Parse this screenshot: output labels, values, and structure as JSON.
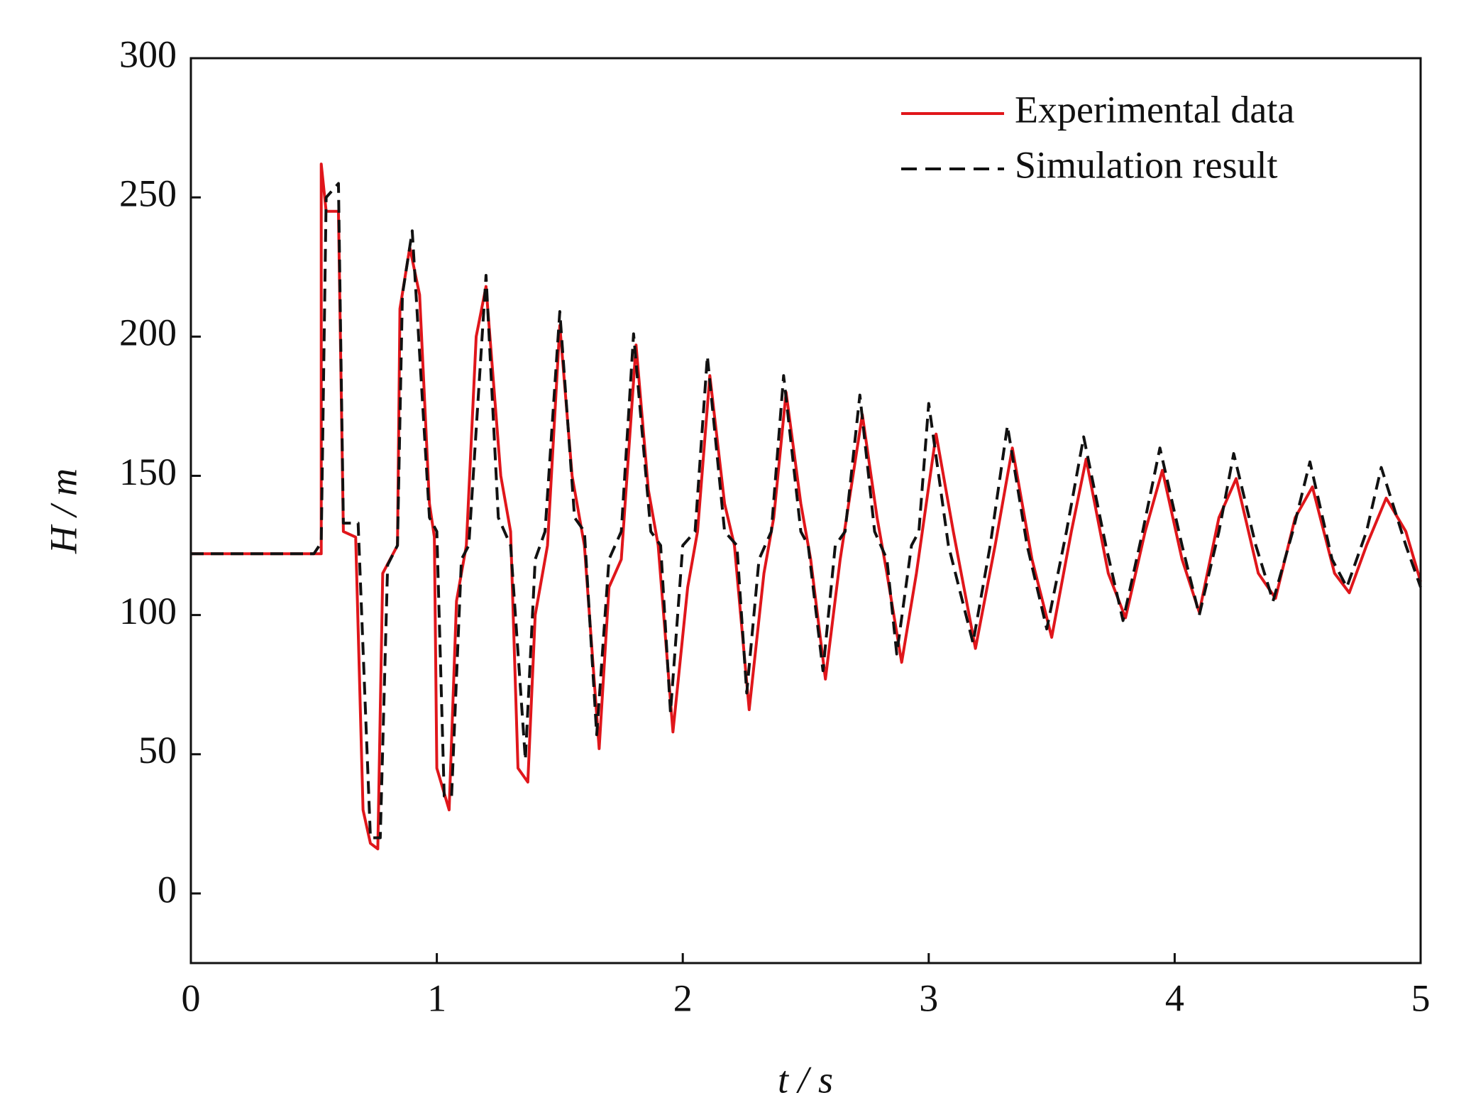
{
  "chart_data": {
    "type": "line",
    "xlabel": "t  / s",
    "ylabel": "H / m",
    "xlim": [
      0,
      5
    ],
    "ylim": [
      -25,
      300
    ],
    "xticks": [
      0,
      1,
      2,
      3,
      4,
      5
    ],
    "yticks": [
      0,
      50,
      100,
      150,
      200,
      250,
      300
    ],
    "legend": "upper right",
    "series": [
      {
        "name": "Experimental data",
        "color": "#e0161b",
        "style": "solid",
        "x": [
          0,
          0.53,
          0.53,
          0.55,
          0.6,
          0.62,
          0.67,
          0.7,
          0.73,
          0.76,
          0.78,
          0.84,
          0.85,
          0.89,
          0.93,
          0.97,
          0.99,
          1.0,
          1.05,
          1.08,
          1.12,
          1.16,
          1.2,
          1.26,
          1.3,
          1.33,
          1.37,
          1.4,
          1.45,
          1.5,
          1.55,
          1.6,
          1.66,
          1.7,
          1.75,
          1.81,
          1.86,
          1.9,
          1.96,
          2.02,
          2.06,
          2.11,
          2.17,
          2.21,
          2.27,
          2.33,
          2.37,
          2.42,
          2.48,
          2.52,
          2.58,
          2.64,
          2.73,
          2.79,
          2.83,
          2.89,
          2.95,
          3.03,
          3.1,
          3.19,
          3.27,
          3.34,
          3.42,
          3.5,
          3.58,
          3.64,
          3.73,
          3.8,
          3.88,
          3.95,
          4.03,
          4.1,
          4.18,
          4.25,
          4.34,
          4.41,
          4.49,
          4.56,
          4.65,
          4.71,
          4.78,
          4.86,
          4.94,
          5.0
        ],
        "values": [
          122,
          122,
          262,
          245,
          245,
          130,
          128,
          30,
          18,
          16,
          115,
          125,
          210,
          232,
          215,
          140,
          128,
          45,
          30,
          105,
          125,
          200,
          218,
          150,
          130,
          45,
          40,
          100,
          125,
          204,
          150,
          125,
          52,
          110,
          120,
          197,
          145,
          125,
          58,
          110,
          130,
          186,
          140,
          125,
          66,
          115,
          135,
          180,
          140,
          120,
          77,
          120,
          172,
          135,
          115,
          83,
          115,
          165,
          130,
          88,
          125,
          160,
          120,
          92,
          130,
          156,
          115,
          99,
          130,
          152,
          120,
          101,
          135,
          149,
          115,
          106,
          135,
          146,
          115,
          108,
          125,
          142,
          130,
          112
        ]
      },
      {
        "name": "Simulation result",
        "color": "#111111",
        "style": "dashed",
        "x": [
          0,
          0.5,
          0.53,
          0.55,
          0.6,
          0.62,
          0.68,
          0.73,
          0.77,
          0.8,
          0.84,
          0.86,
          0.9,
          0.97,
          1.0,
          1.03,
          1.06,
          1.1,
          1.13,
          1.2,
          1.25,
          1.3,
          1.36,
          1.4,
          1.44,
          1.5,
          1.56,
          1.6,
          1.65,
          1.7,
          1.75,
          1.8,
          1.87,
          1.91,
          1.95,
          2.0,
          2.05,
          2.1,
          2.17,
          2.22,
          2.26,
          2.31,
          2.36,
          2.41,
          2.48,
          2.51,
          2.57,
          2.62,
          2.66,
          2.72,
          2.78,
          2.83,
          2.87,
          2.93,
          2.96,
          3.0,
          3.08,
          3.18,
          3.25,
          3.32,
          3.4,
          3.48,
          3.56,
          3.63,
          3.72,
          3.79,
          3.87,
          3.94,
          4.03,
          4.1,
          4.18,
          4.24,
          4.33,
          4.4,
          4.48,
          4.55,
          4.64,
          4.7,
          4.78,
          4.84,
          4.94,
          5.0
        ],
        "values": [
          122,
          122,
          126,
          250,
          255,
          133,
          133,
          20,
          20,
          118,
          125,
          215,
          238,
          135,
          130,
          35,
          35,
          120,
          125,
          222,
          135,
          125,
          48,
          120,
          130,
          209,
          135,
          130,
          57,
          120,
          130,
          201,
          130,
          125,
          65,
          125,
          130,
          193,
          130,
          125,
          72,
          120,
          130,
          186,
          130,
          125,
          80,
          125,
          130,
          179,
          130,
          120,
          86,
          125,
          130,
          176,
          125,
          90,
          125,
          168,
          125,
          95,
          130,
          164,
          125,
          98,
          130,
          160,
          125,
          100,
          130,
          158,
          125,
          105,
          130,
          155,
          120,
          110,
          130,
          153,
          125,
          110
        ]
      }
    ]
  }
}
